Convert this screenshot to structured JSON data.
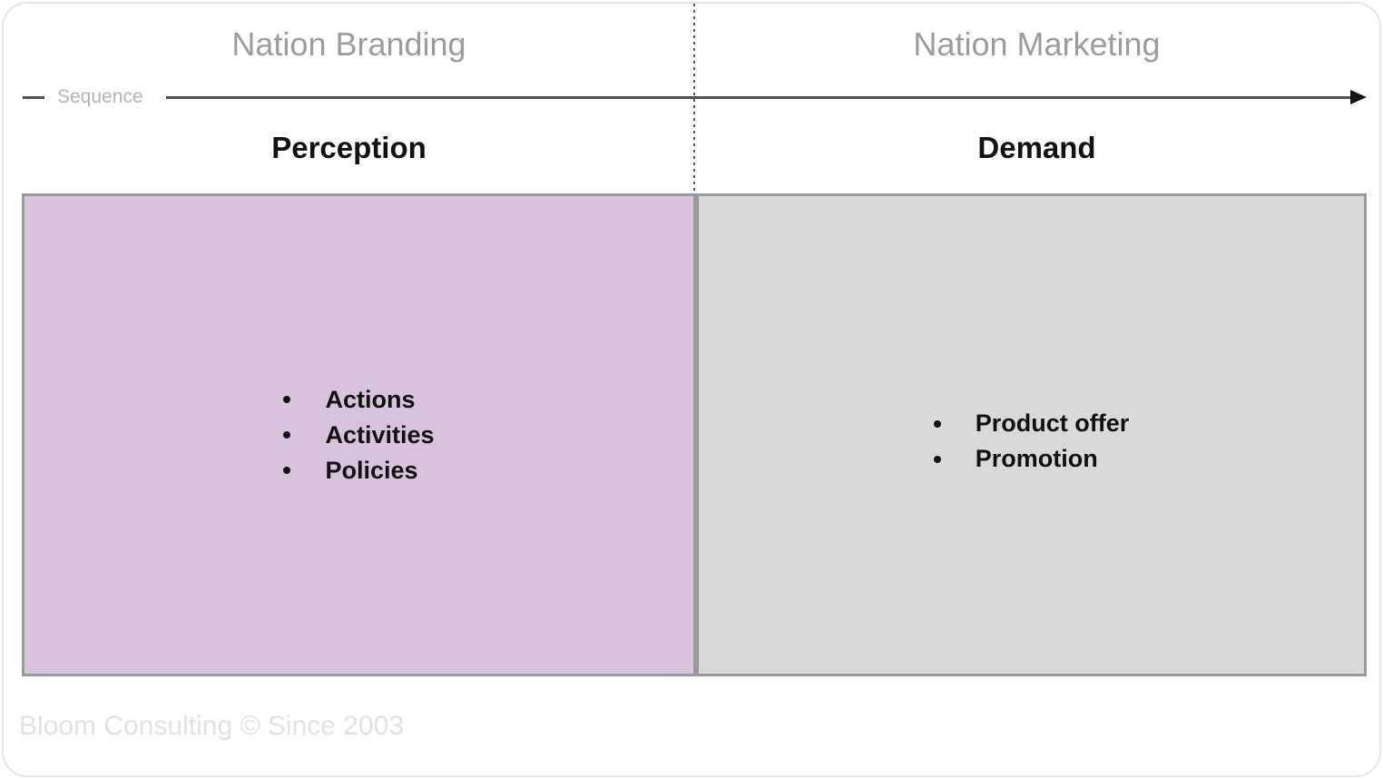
{
  "columns": [
    {
      "title": "Nation Branding",
      "subtitle": "Perception",
      "items": [
        "Actions",
        "Activities",
        "Policies"
      ]
    },
    {
      "title": "Nation Marketing",
      "subtitle": "Demand",
      "items": [
        "Product offer",
        "Promotion"
      ]
    }
  ],
  "sequence_label": "Sequence",
  "footer": "Bloom Consulting © Since 2003",
  "colors": {
    "left_box_bg": "#d7c4dc",
    "right_box_bg": "#d9d9d9",
    "box_border": "#999999",
    "title_gray": "#9c9c9c",
    "sequence_gray": "#b4b4b4",
    "arrow_line": "#4f4f4f",
    "arrowhead": "#141414",
    "text_dark": "#111111",
    "footer_gray": "#e2e2e2",
    "card_border": "#e5e5e5"
  }
}
